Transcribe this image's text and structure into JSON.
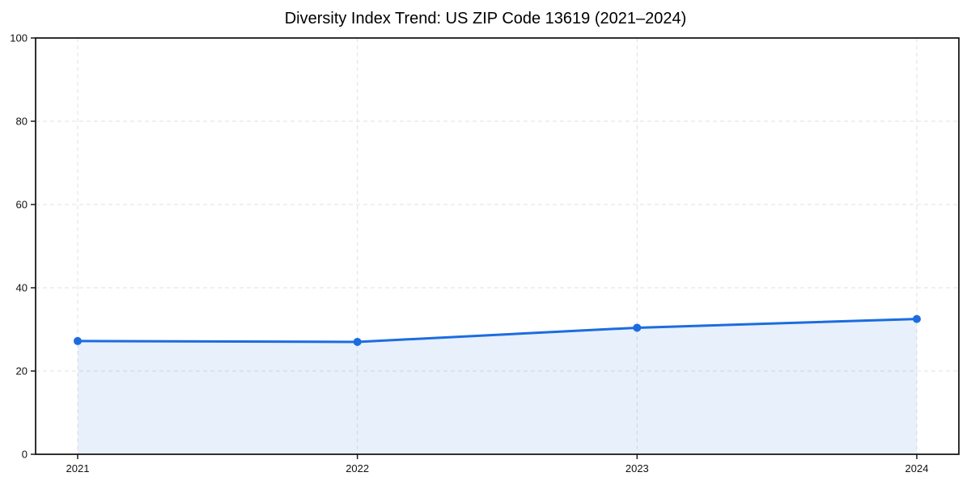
{
  "chart_data": {
    "type": "line",
    "title": "Diversity Index Trend: US ZIP Code 13619 (2021–2024)",
    "x": [
      2021,
      2022,
      2023,
      2024
    ],
    "xticklabels": [
      "2021",
      "2022",
      "2023",
      "2024"
    ],
    "series": [
      {
        "name": "Diversity Index",
        "values": [
          27.2,
          27.0,
          30.4,
          32.5
        ]
      }
    ],
    "xlabel": "",
    "ylabel": "",
    "ylim": [
      0,
      100
    ],
    "yticks": [
      0,
      20,
      40,
      60,
      80,
      100
    ],
    "grid": "dashed, horizontal and vertical",
    "legend": "none",
    "marker": "circle",
    "colors": {
      "line": "#1c6ce0",
      "marker": "#1c6ce0",
      "area_fill": "rgba(28,108,224,0.10)",
      "grid": "#e0e0e0",
      "spine": "#1a1a1a",
      "tick_label": "#111111",
      "background": "#ffffff"
    }
  }
}
